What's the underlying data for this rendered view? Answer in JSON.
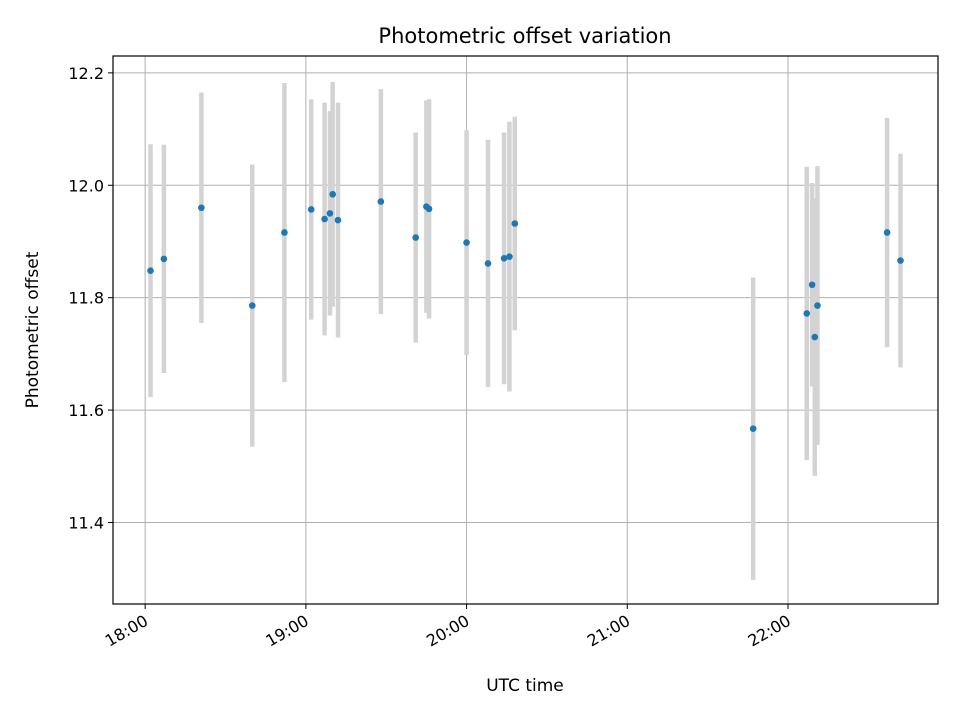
{
  "chart_data": {
    "type": "scatter",
    "title": "Photometric offset variation",
    "xlabel": "UTC time",
    "ylabel": "Photometric offset",
    "x_ticks": [
      "18:00",
      "19:00",
      "20:00",
      "21:00",
      "22:00"
    ],
    "y_ticks": [
      "11.4",
      "11.6",
      "11.8",
      "12.0",
      "12.2"
    ],
    "xlim": [
      "17:48",
      "22:56"
    ],
    "ylim": [
      11.255,
      12.23
    ],
    "grid": true,
    "colors": {
      "points": "#1f77b4",
      "errorbars": "#d3d3d3",
      "grid": "#b0b0b0"
    },
    "series": [
      {
        "points": [
          {
            "x": "18:02",
            "y": 11.848,
            "err": 0.225
          },
          {
            "x": "18:07",
            "y": 11.869,
            "err": 0.203
          },
          {
            "x": "18:21",
            "y": 11.96,
            "err": 0.205
          },
          {
            "x": "18:40",
            "y": 11.786,
            "err": 0.251
          },
          {
            "x": "18:52",
            "y": 11.916,
            "err": 0.266
          },
          {
            "x": "19:02",
            "y": 11.957,
            "err": 0.196
          },
          {
            "x": "19:07",
            "y": 11.94,
            "err": 0.207
          },
          {
            "x": "19:09",
            "y": 11.95,
            "err": 0.182
          },
          {
            "x": "19:10",
            "y": 11.984,
            "err": 0.2
          },
          {
            "x": "19:12",
            "y": 11.938,
            "err": 0.209
          },
          {
            "x": "19:28",
            "y": 11.971,
            "err": 0.2
          },
          {
            "x": "19:41",
            "y": 11.907,
            "err": 0.187
          },
          {
            "x": "19:45",
            "y": 11.962,
            "err": 0.189
          },
          {
            "x": "19:46",
            "y": 11.958,
            "err": 0.195
          },
          {
            "x": "20:00",
            "y": 11.898,
            "err": 0.2
          },
          {
            "x": "20:08",
            "y": 11.861,
            "err": 0.22
          },
          {
            "x": "20:14",
            "y": 11.87,
            "err": 0.224
          },
          {
            "x": "20:16",
            "y": 11.873,
            "err": 0.24
          },
          {
            "x": "20:18",
            "y": 11.932,
            "err": 0.19
          },
          {
            "x": "21:47",
            "y": 11.567,
            "err": 0.269
          },
          {
            "x": "22:07",
            "y": 11.772,
            "err": 0.261
          },
          {
            "x": "22:09",
            "y": 11.823,
            "err": 0.181
          },
          {
            "x": "22:10",
            "y": 11.73,
            "err": 0.247
          },
          {
            "x": "22:11",
            "y": 11.786,
            "err": 0.248
          },
          {
            "x": "22:37",
            "y": 11.916,
            "err": 0.204
          },
          {
            "x": "22:42",
            "y": 11.866,
            "err": 0.19
          }
        ]
      }
    ]
  }
}
